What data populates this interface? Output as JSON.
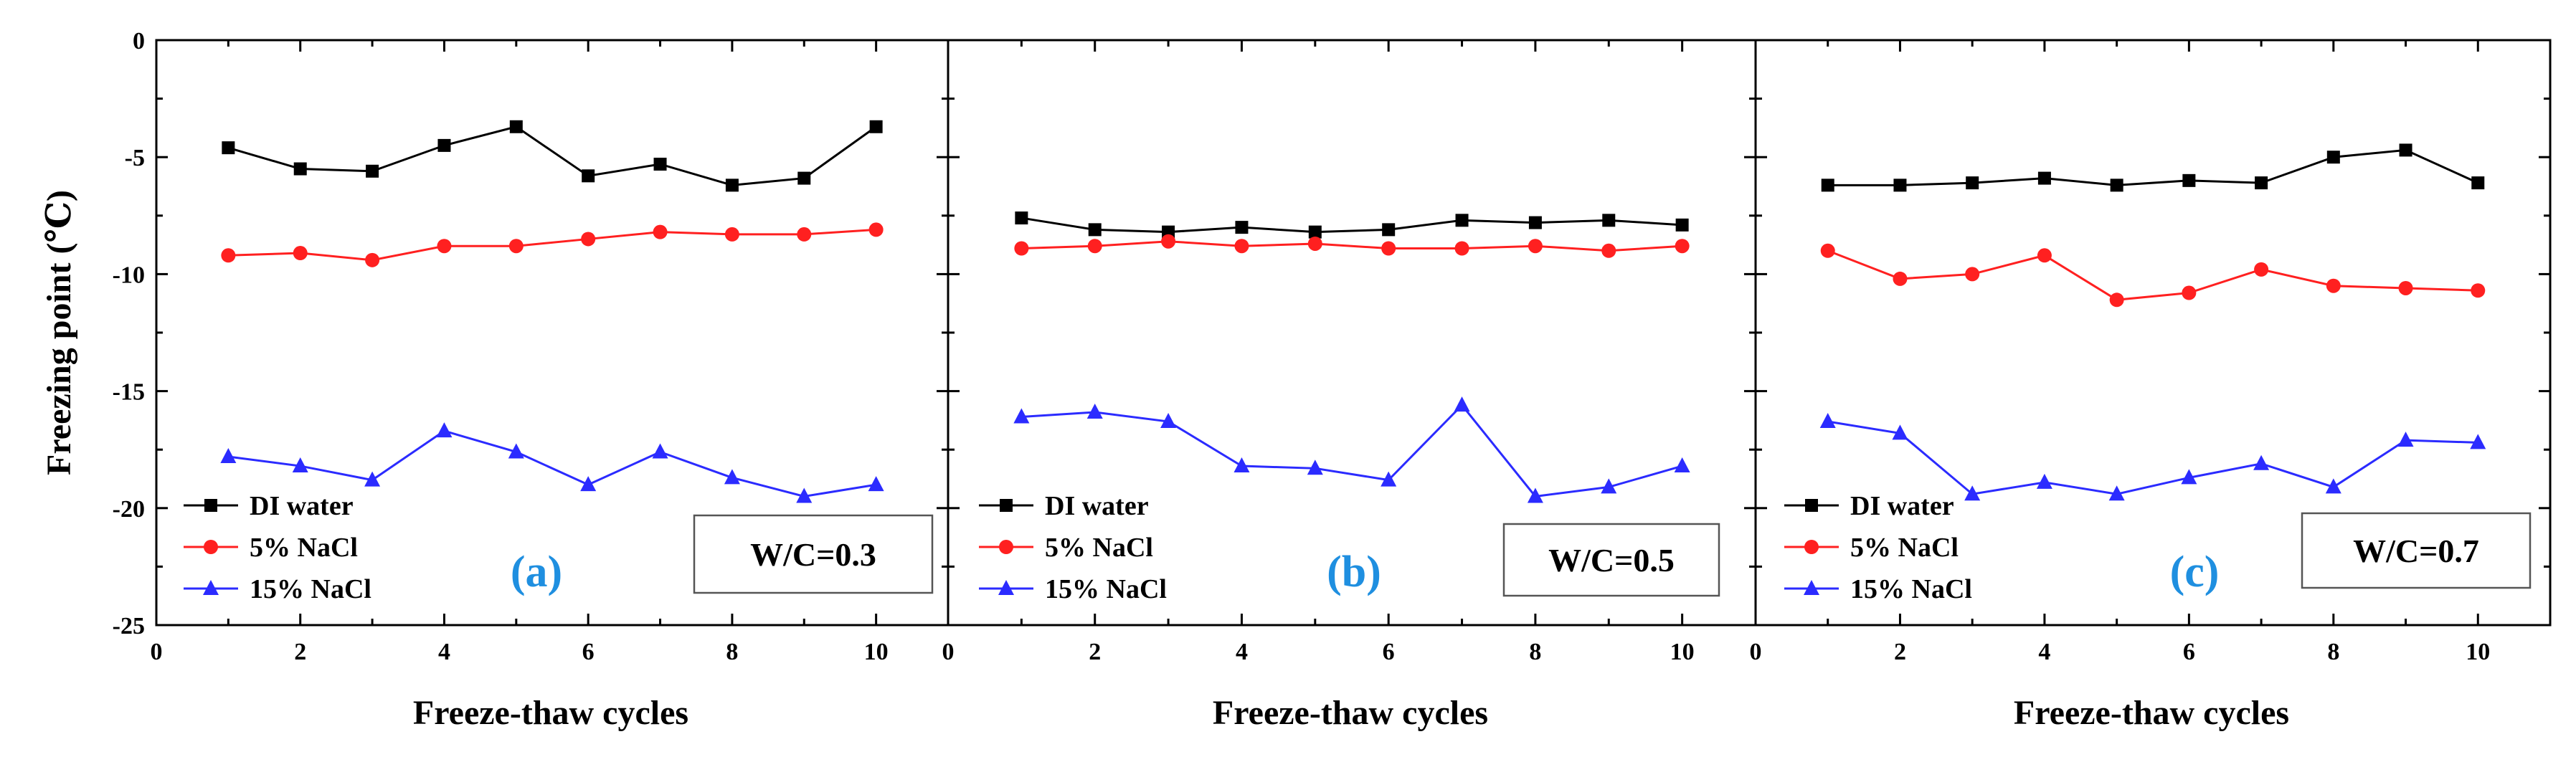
{
  "chart_data": [
    {
      "type": "line",
      "panel_label": "(a)",
      "condition_label": "W/C=0.3",
      "xlabel": "Freeze-thaw cycles",
      "ylabel": "Freezing point (℃)",
      "xlim": [
        0,
        11
      ],
      "ylim": [
        -25,
        0
      ],
      "x_ticks": [
        "0",
        "2",
        "4",
        "6",
        "8",
        "10"
      ],
      "y_ticks": [
        "0",
        "-5",
        "-10",
        "-15",
        "-20",
        "-25"
      ],
      "x": [
        1,
        2,
        3,
        4,
        5,
        6,
        7,
        8,
        9,
        10
      ],
      "series": [
        {
          "name": "DI water",
          "color": "#000000",
          "marker": "square",
          "values": [
            -4.6,
            -5.5,
            -5.6,
            -4.5,
            -3.7,
            -5.8,
            -5.3,
            -6.2,
            -5.9,
            -3.7
          ]
        },
        {
          "name": "5% NaCl",
          "color": "#ff2020",
          "marker": "circle",
          "values": [
            -9.2,
            -9.1,
            -9.4,
            -8.8,
            -8.8,
            -8.5,
            -8.2,
            -8.3,
            -8.3,
            -8.1
          ]
        },
        {
          "name": "15% NaCl",
          "color": "#2b2bff",
          "marker": "triangle",
          "values": [
            -17.8,
            -18.2,
            -18.8,
            -16.7,
            -17.6,
            -19.0,
            -17.6,
            -18.7,
            -19.5,
            -19.0
          ]
        }
      ]
    },
    {
      "type": "line",
      "panel_label": "(b)",
      "condition_label": "W/C=0.5",
      "xlabel": "Freeze-thaw cycles",
      "ylabel": "",
      "xlim": [
        0,
        11
      ],
      "ylim": [
        -25,
        0
      ],
      "x_ticks": [
        "0",
        "2",
        "4",
        "6",
        "8",
        "10"
      ],
      "y_ticks": [],
      "x": [
        1,
        2,
        3,
        4,
        5,
        6,
        7,
        8,
        9,
        10
      ],
      "series": [
        {
          "name": "DI water",
          "color": "#000000",
          "marker": "square",
          "values": [
            -7.6,
            -8.1,
            -8.2,
            -8.0,
            -8.2,
            -8.1,
            -7.7,
            -7.8,
            -7.7,
            -7.9
          ]
        },
        {
          "name": "5% NaCl",
          "color": "#ff2020",
          "marker": "circle",
          "values": [
            -8.9,
            -8.8,
            -8.6,
            -8.8,
            -8.7,
            -8.9,
            -8.9,
            -8.8,
            -9.0,
            -8.8
          ]
        },
        {
          "name": "15% NaCl",
          "color": "#2b2bff",
          "marker": "triangle",
          "values": [
            -16.1,
            -15.9,
            -16.3,
            -18.2,
            -18.3,
            -18.8,
            -15.6,
            -19.5,
            -19.1,
            -18.2
          ]
        }
      ]
    },
    {
      "type": "line",
      "panel_label": "(c)",
      "condition_label": "W/C=0.7",
      "xlabel": "Freeze-thaw cycles",
      "ylabel": "",
      "xlim": [
        0,
        11
      ],
      "ylim": [
        -25,
        0
      ],
      "x_ticks": [
        "0",
        "2",
        "4",
        "6",
        "8",
        "10"
      ],
      "y_ticks": [],
      "x": [
        1,
        2,
        3,
        4,
        5,
        6,
        7,
        8,
        9,
        10
      ],
      "series": [
        {
          "name": "DI water",
          "color": "#000000",
          "marker": "square",
          "values": [
            -6.2,
            -6.2,
            -6.1,
            -5.9,
            -6.2,
            -6.0,
            -6.1,
            -5.0,
            -4.7,
            -6.1
          ]
        },
        {
          "name": "5% NaCl",
          "color": "#ff2020",
          "marker": "circle",
          "values": [
            -9.0,
            -10.2,
            -10.0,
            -9.2,
            -11.1,
            -10.8,
            -9.8,
            -10.5,
            -10.6,
            -10.7
          ]
        },
        {
          "name": "15% NaCl",
          "color": "#2b2bff",
          "marker": "triangle",
          "values": [
            -16.3,
            -16.8,
            -19.4,
            -18.9,
            -19.4,
            -18.7,
            -18.1,
            -19.1,
            -17.1,
            -17.2
          ]
        }
      ]
    }
  ]
}
